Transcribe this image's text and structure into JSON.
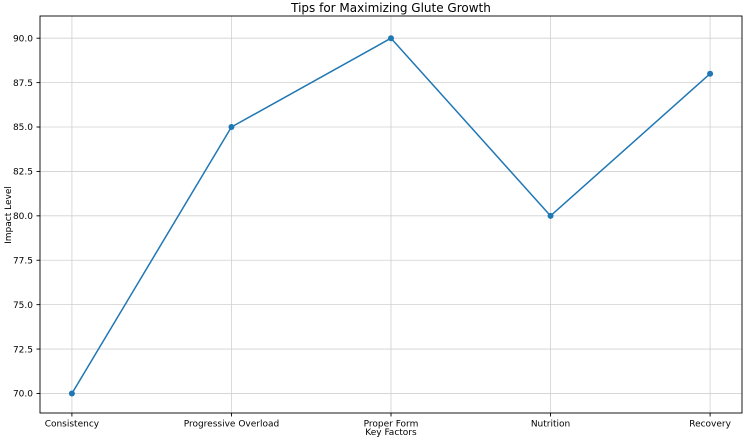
{
  "chart_data": {
    "type": "line",
    "title": "Tips for Maximizing Glute Growth",
    "xlabel": "Key Factors",
    "ylabel": "Impact Level",
    "categories": [
      "Consistency",
      "Progressive Overload",
      "Proper Form",
      "Nutrition",
      "Recovery"
    ],
    "values": [
      70,
      85,
      90,
      80,
      88
    ],
    "yticks": [
      70.0,
      72.5,
      75.0,
      77.5,
      80.0,
      82.5,
      85.0,
      87.5,
      90.0
    ],
    "ylim": [
      68.9,
      91.25
    ],
    "grid": true,
    "legend": "none",
    "line_color": "#1f77b4",
    "marker": "circle",
    "grid_color": "#d0d0d0",
    "spine_color": "#000000",
    "background_color": "#ffffff"
  }
}
